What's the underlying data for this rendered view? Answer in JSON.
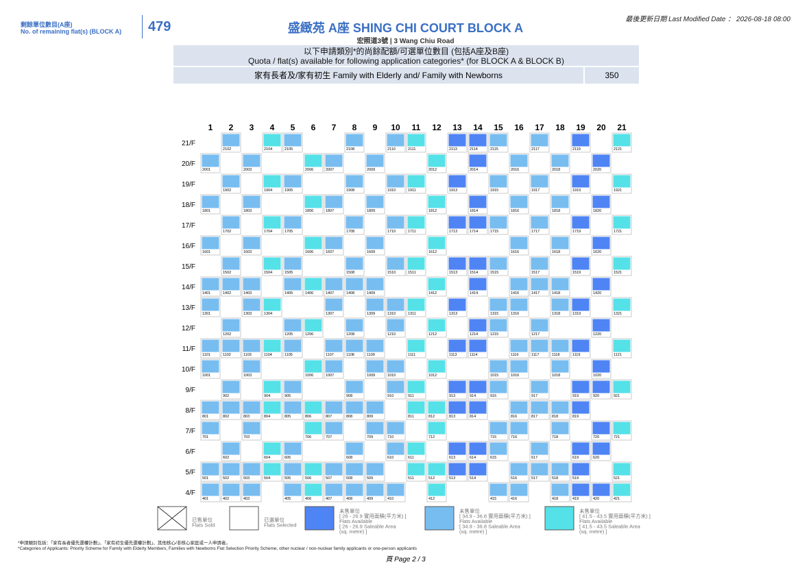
{
  "header": {
    "remaining_label": [
      "剩餘單位數目(A座)",
      "No. of remaining flat(s) (BLOCK A)"
    ],
    "remaining_count": "479",
    "title": "盛緻苑 A座 SHING CHI COURT BLOCK A",
    "subtitle": "宏照道3號  |  3 Wang Chiu Road",
    "last_modified": "最後更新日期  Last Modified Date  ：  2026-08-18 08:00"
  },
  "quota": {
    "heading": [
      "以下申請類別*的尚餘配額/可選單位數目 (包括A座及B座)",
      "Quota / flat(s) available for following application categories* (for BLOCK A & BLOCK B)"
    ],
    "category": "家有長者及/家有初生 Family with Elderly and/ Family with Newborns",
    "count": "350"
  },
  "columns": [
    "1",
    "2",
    "3",
    "4",
    "5",
    "6",
    "7",
    "8",
    "9",
    "10",
    "11",
    "12",
    "13",
    "14",
    "15",
    "16",
    "17",
    "18",
    "19",
    "20",
    "21"
  ],
  "floors": [
    {
      "label": "21/F",
      "flats": [
        "2102",
        "2104",
        "2105",
        "2108",
        "2110",
        "2111",
        "2113",
        "2114",
        "2115",
        "2117",
        "2119",
        "2121"
      ]
    },
    {
      "label": "20/F",
      "flats": [
        "2001",
        "2003",
        "2006",
        "2007",
        "2009",
        "2012",
        "2014",
        "2016",
        "2018",
        "2020"
      ]
    },
    {
      "label": "19/F",
      "flats": [
        "1902",
        "1904",
        "1905",
        "1908",
        "1910",
        "1911",
        "1913",
        "1915",
        "1917",
        "1919",
        "1921"
      ]
    },
    {
      "label": "18/F",
      "flats": [
        "1801",
        "1803",
        "1806",
        "1807",
        "1809",
        "1812",
        "1814",
        "1816",
        "1818",
        "1820"
      ]
    },
    {
      "label": "17/F",
      "flats": [
        "1702",
        "1704",
        "1705",
        "1708",
        "1710",
        "1711",
        "1713",
        "1714",
        "1715",
        "1717",
        "1719",
        "1721"
      ]
    },
    {
      "label": "16/F",
      "flats": [
        "1601",
        "1603",
        "1606",
        "1607",
        "1609",
        "1612",
        "1616",
        "1618",
        "1620"
      ]
    },
    {
      "label": "15/F",
      "flats": [
        "1502",
        "1504",
        "1505",
        "1508",
        "1510",
        "1511",
        "1513",
        "1514",
        "1515",
        "1517",
        "1519",
        "1521"
      ]
    },
    {
      "label": "14/F",
      "flats": [
        "1401",
        "1402",
        "1403",
        "1405",
        "1406",
        "1407",
        "1408",
        "1409",
        "1412",
        "1414",
        "1416",
        "1417",
        "1418",
        "1420"
      ]
    },
    {
      "label": "13/F",
      "flats": [
        "1301",
        "1303",
        "1304",
        "1307",
        "1309",
        "1310",
        "1311",
        "1313",
        "1315",
        "1316",
        "1318",
        "1319",
        "1321"
      ]
    },
    {
      "label": "12/F",
      "flats": [
        "1202",
        "1205",
        "1206",
        "1208",
        "1210",
        "1212",
        "1214",
        "1215",
        "1217",
        "1220"
      ]
    },
    {
      "label": "11/F",
      "flats": [
        "1101",
        "1102",
        "1103",
        "1104",
        "1105",
        "1107",
        "1108",
        "1109",
        "1111",
        "1113",
        "1114",
        "1116",
        "1117",
        "1118",
        "1119",
        "1121"
      ]
    },
    {
      "label": "10/F",
      "flats": [
        "1001",
        "1003",
        "1006",
        "1007",
        "1009",
        "1010",
        "1012",
        "1015",
        "1016",
        "1018",
        "1020"
      ]
    },
    {
      "label": "9/F",
      "flats": [
        "902",
        "904",
        "905",
        "908",
        "910",
        "911",
        "913",
        "914",
        "915",
        "917",
        "919",
        "920",
        "921"
      ]
    },
    {
      "label": "8/F",
      "flats": [
        "801",
        "802",
        "803",
        "804",
        "805",
        "806",
        "807",
        "808",
        "809",
        "811",
        "812",
        "813",
        "814",
        "816",
        "817",
        "818",
        "819"
      ]
    },
    {
      "label": "7/F",
      "flats": [
        "701",
        "703",
        "706",
        "707",
        "709",
        "710",
        "712",
        "715",
        "716",
        "718",
        "720",
        "721"
      ]
    },
    {
      "label": "6/F",
      "flats": [
        "602",
        "604",
        "605",
        "608",
        "610",
        "611",
        "613",
        "614",
        "615",
        "617",
        "619",
        "620"
      ]
    },
    {
      "label": "5/F",
      "flats": [
        "501",
        "502",
        "503",
        "504",
        "505",
        "506",
        "507",
        "508",
        "509",
        "511",
        "512",
        "513",
        "514",
        "516",
        "517",
        "518",
        "519",
        "521"
      ]
    },
    {
      "label": "4/F",
      "flats": [
        "401",
        "402",
        "403",
        "405",
        "406",
        "407",
        "408",
        "409",
        "410",
        "412",
        "415",
        "416",
        "418",
        "419",
        "420",
        "421"
      ]
    }
  ],
  "legend": [
    {
      "lines": [
        "已售單位",
        "Flats Sold"
      ]
    },
    {
      "lines": [
        "已選單位",
        "Flats Selected"
      ]
    },
    {
      "color": "#4f84f4",
      "columns": [
        "13",
        "14",
        "19",
        "20"
      ],
      "lines": [
        "未售單位",
        "[ 26 - 26.9 實用面積(平方米) ]",
        "Flats Available",
        "[ 26 - 26.9 Saleable Area",
        "(sq. metre) ]"
      ]
    },
    {
      "color": "#78bdf0",
      "columns": [
        "1",
        "2",
        "3",
        "5",
        "7",
        "8",
        "9",
        "10",
        "15",
        "16",
        "17",
        "18"
      ],
      "lines": [
        "未售單位",
        "[ 34.9 - 36.8 實用面積(平方米) ]",
        "Flats Available",
        "[ 34.9 - 36.8 Saleable Area",
        "(sq. metre) ]"
      ]
    },
    {
      "color": "#55e1e8",
      "columns": [
        "4",
        "6",
        "11",
        "12",
        "21"
      ],
      "lines": [
        "未售單位",
        "[ 41.5 - 43.5 實用面積(平方米) ]",
        "Flats Available",
        "[ 41.5 - 43.5 Saleable Area",
        "(sq. metre) ]"
      ]
    }
  ],
  "footnotes": [
    "*申請類別包括：「家有長者優先選樓計劃」、「家有初生優先選樓計劃」、其他核心/非核心家庭或一人申請者。",
    "*Categories of Applicants: Priority Scheme for Family with Elderly Members, Families with Newborns Flat Selection Priority Scheme, other nuclear / non-nuclear family applicants or one-person applicants"
  ],
  "page": "頁  Page  2 / 3"
}
